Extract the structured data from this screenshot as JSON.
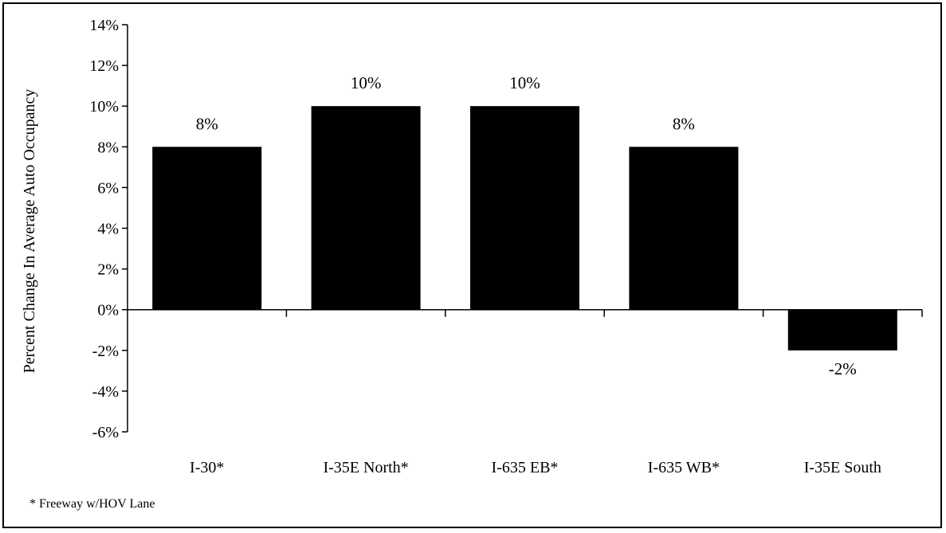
{
  "chart_data": {
    "type": "bar",
    "title": "",
    "xlabel": "",
    "ylabel": "Percent Change In Average Auto Occupancy",
    "categories": [
      "I-30*",
      "I-35E North*",
      "I-635 EB*",
      "I-635 WB*",
      "I-35E South"
    ],
    "values": [
      8,
      10,
      10,
      8,
      -2
    ],
    "data_labels": [
      "8%",
      "10%",
      "10%",
      "8%",
      "-2%"
    ],
    "ylim": [
      -6,
      14
    ],
    "y_ticks": [
      14,
      12,
      10,
      8,
      6,
      4,
      2,
      0,
      -2,
      -4,
      -6
    ],
    "y_tick_labels": [
      "14%",
      "12%",
      "10%",
      "8%",
      "6%",
      "4%",
      "2%",
      "0%",
      "-2%",
      "-4%",
      "-6%"
    ],
    "grid": false,
    "legend": "none",
    "bar_color": "#000000"
  },
  "footnote": "* Freeway w/HOV Lane"
}
